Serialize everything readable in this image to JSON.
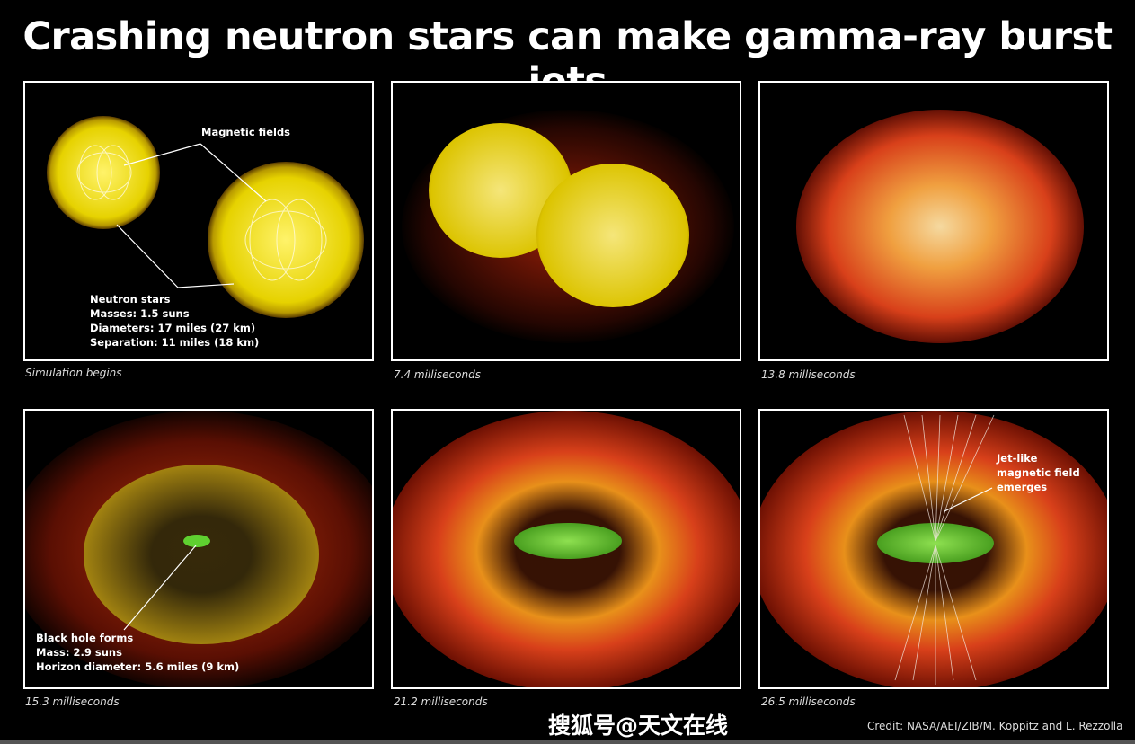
{
  "title": "Crashing neutron stars can make gamma-ray burst jets",
  "panels": [
    {
      "caption": "Simulation begins",
      "labels": [
        "Magnetic fields",
        "Neutron stars",
        "Masses: 1.5 suns",
        "Diameters: 17 miles (27 km)",
        "Separation: 11 miles (18 km)"
      ]
    },
    {
      "caption": "7.4 milliseconds"
    },
    {
      "caption": "13.8 milliseconds"
    },
    {
      "caption": "15.3 milliseconds",
      "labels": [
        "Black hole forms",
        "Mass: 2.9 suns",
        "Horizon diameter: 5.6 miles (9 km)"
      ]
    },
    {
      "caption": "21.2 milliseconds"
    },
    {
      "caption": "26.5 milliseconds",
      "labels": [
        "Jet-like",
        "magnetic field",
        "emerges"
      ]
    }
  ],
  "credit": "Credit: NASA/AEI/ZIB/M. Koppitz and L. Rezzolla",
  "watermark": "搜狐号@天文在线",
  "colors": {
    "star": "#e8d800",
    "plasma_red": "#c8260a",
    "plasma_orange": "#f07a10",
    "disk_green": "#6fcf2a"
  }
}
